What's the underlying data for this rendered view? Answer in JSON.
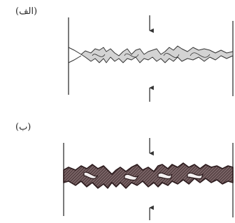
{
  "panels": [
    {
      "id": "a",
      "label": "(الف)",
      "style": "thin",
      "line_color": "#333333",
      "fill_color": "#bdbdbd"
    },
    {
      "id": "b",
      "label": "(ب)",
      "style": "thick",
      "line_color": "#3a2226",
      "fill_color": "#6e5a5c"
    }
  ]
}
